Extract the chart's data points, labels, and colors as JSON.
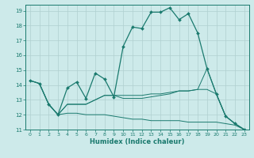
{
  "xlabel": "Humidex (Indice chaleur)",
  "bg_color": "#cdeaea",
  "grid_color": "#b0d0d0",
  "line_color": "#1a7a6e",
  "xlim": [
    -0.5,
    23.5
  ],
  "ylim": [
    11,
    19.4
  ],
  "xticks": [
    0,
    1,
    2,
    3,
    4,
    5,
    6,
    7,
    8,
    9,
    10,
    11,
    12,
    13,
    14,
    15,
    16,
    17,
    18,
    19,
    20,
    21,
    22,
    23
  ],
  "yticks": [
    11,
    12,
    13,
    14,
    15,
    16,
    17,
    18,
    19
  ],
  "line1_x": [
    0,
    1,
    2,
    3,
    4,
    5,
    6,
    7,
    8,
    9,
    10,
    11,
    12,
    13,
    14,
    15,
    16,
    17,
    18,
    19,
    20,
    21,
    22,
    23
  ],
  "line1_y": [
    14.3,
    14.1,
    12.7,
    12.0,
    13.8,
    14.2,
    13.1,
    14.8,
    14.4,
    13.2,
    16.6,
    17.9,
    17.8,
    18.9,
    18.9,
    19.2,
    18.4,
    18.8,
    17.5,
    15.1,
    13.4,
    11.9,
    11.4,
    11.0
  ],
  "line2_x": [
    0,
    1,
    2,
    3,
    4,
    5,
    6,
    7,
    8,
    9,
    10,
    11,
    12,
    13,
    14,
    15,
    16,
    17,
    18,
    19,
    20,
    21,
    22,
    23
  ],
  "line2_y": [
    14.3,
    14.1,
    12.7,
    12.0,
    12.7,
    12.7,
    12.7,
    13.0,
    13.3,
    13.3,
    13.3,
    13.3,
    13.3,
    13.4,
    13.4,
    13.5,
    13.6,
    13.6,
    13.7,
    15.1,
    13.4,
    11.9,
    11.4,
    11.0
  ],
  "line3_x": [
    2,
    3,
    4,
    5,
    6,
    7,
    8,
    9,
    10,
    11,
    12,
    13,
    14,
    15,
    16,
    17,
    18,
    19,
    20,
    21,
    22,
    23
  ],
  "line3_y": [
    12.7,
    12.0,
    12.1,
    12.1,
    12.0,
    12.0,
    12.0,
    11.9,
    11.8,
    11.7,
    11.7,
    11.6,
    11.6,
    11.6,
    11.6,
    11.5,
    11.5,
    11.5,
    11.5,
    11.4,
    11.3,
    11.0
  ],
  "line4_x": [
    0,
    1,
    2,
    3,
    4,
    5,
    6,
    7,
    8,
    9,
    10,
    11,
    12,
    13,
    14,
    15,
    16,
    17,
    18,
    19,
    20,
    21,
    22,
    23
  ],
  "line4_y": [
    14.3,
    14.1,
    12.7,
    12.0,
    12.7,
    12.7,
    12.7,
    13.0,
    13.3,
    13.3,
    13.1,
    13.1,
    13.1,
    13.2,
    13.3,
    13.4,
    13.6,
    13.6,
    13.7,
    13.7,
    13.4,
    11.9,
    11.4,
    11.0
  ]
}
